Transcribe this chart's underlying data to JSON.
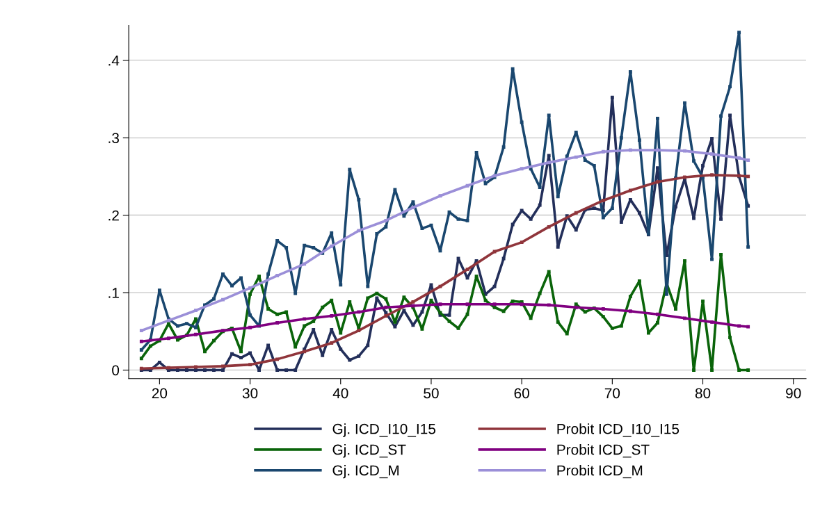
{
  "chart_data": {
    "type": "line",
    "marker": "square",
    "line_style": "solid",
    "grid": "y",
    "legend": "bottom",
    "xlim": [
      16.6,
      91.4
    ],
    "xticks": [
      20,
      30,
      40,
      50,
      60,
      70,
      80,
      90
    ],
    "ylim": [
      -0.011,
      0.445
    ],
    "yticks": [
      0,
      {
        "value": 0.1,
        "label": ".1"
      },
      {
        "value": 0.2,
        "label": ".2"
      },
      {
        "value": 0.3,
        "label": ".3"
      },
      {
        "value": 0.4,
        "label": ".4"
      }
    ],
    "x": [
      18,
      19,
      20,
      21,
      22,
      23,
      24,
      25,
      26,
      27,
      28,
      29,
      30,
      31,
      32,
      33,
      34,
      35,
      36,
      37,
      38,
      39,
      40,
      41,
      42,
      43,
      44,
      45,
      46,
      47,
      48,
      49,
      50,
      51,
      52,
      53,
      54,
      55,
      56,
      57,
      58,
      59,
      60,
      61,
      62,
      63,
      64,
      65,
      66,
      67,
      68,
      69,
      70,
      71,
      72,
      73,
      74,
      75,
      76,
      77,
      78,
      79,
      80,
      81,
      82,
      83,
      84,
      85
    ],
    "series": [
      {
        "name": "Gj. ICD_I10_I15",
        "color": "#232f5a",
        "values": [
          0,
          0,
          0.01,
          0,
          0,
          0,
          0,
          0,
          0,
          0,
          0.021,
          0.016,
          0.022,
          0,
          0.032,
          0,
          0,
          0,
          0.027,
          0.052,
          0.019,
          0.052,
          0.027,
          0.013,
          0.018,
          0.032,
          0.093,
          0.074,
          0.056,
          0.077,
          0.058,
          0.075,
          0.11,
          0.071,
          0.071,
          0.144,
          0.119,
          0.141,
          0.098,
          0.108,
          0.144,
          0.188,
          0.206,
          0.195,
          0.213,
          0.277,
          0.159,
          0.199,
          0.181,
          0.207,
          0.209,
          0.206,
          0.352,
          0.191,
          0.22,
          0.203,
          0.175,
          0.261,
          0.148,
          0.211,
          0.247,
          0.196,
          0.264,
          0.299,
          0.195,
          0.329,
          0.25,
          0.212
        ]
      },
      {
        "name": "Gj. ICD_ST",
        "color": "#0a640a",
        "values": [
          0.015,
          0.031,
          0.038,
          0.06,
          0.039,
          0.045,
          0.066,
          0.024,
          0.038,
          0.05,
          0.054,
          0.024,
          0.098,
          0.121,
          0.079,
          0.072,
          0.075,
          0.03,
          0.057,
          0.063,
          0.081,
          0.09,
          0.048,
          0.088,
          0.054,
          0.093,
          0.099,
          0.092,
          0.062,
          0.094,
          0.081,
          0.053,
          0.09,
          0.074,
          0.063,
          0.054,
          0.072,
          0.121,
          0.09,
          0.081,
          0.076,
          0.089,
          0.088,
          0.067,
          0.099,
          0.127,
          0.062,
          0.047,
          0.085,
          0.075,
          0.08,
          0.069,
          0.054,
          0.057,
          0.095,
          0.115,
          0.048,
          0.061,
          0.112,
          0.079,
          0.141,
          0,
          0.089,
          0,
          0.149,
          0.042,
          0,
          0
        ]
      },
      {
        "name": "Gj. ICD_M",
        "color": "#1a476f",
        "values": [
          0.026,
          0.039,
          0.103,
          0.066,
          0.057,
          0.06,
          0.055,
          0.084,
          0.092,
          0.124,
          0.109,
          0.119,
          0.071,
          0.057,
          0.124,
          0.167,
          0.158,
          0.099,
          0.161,
          0.158,
          0.151,
          0.177,
          0.11,
          0.259,
          0.22,
          0.108,
          0.176,
          0.185,
          0.233,
          0.199,
          0.217,
          0.183,
          0.187,
          0.154,
          0.204,
          0.195,
          0.193,
          0.281,
          0.241,
          0.249,
          0.288,
          0.389,
          0.32,
          0.26,
          0.236,
          0.329,
          0.224,
          0.276,
          0.307,
          0.271,
          0.264,
          0.197,
          0.209,
          0.3,
          0.385,
          0.297,
          0.176,
          0.325,
          0.098,
          0.248,
          0.345,
          0.27,
          0.249,
          0.143,
          0.328,
          0.366,
          0.436,
          0.159
        ]
      },
      {
        "name": "Probit ICD_I10_I15",
        "color": "#90353b",
        "x": [
          18,
          21,
          24,
          27,
          30,
          33,
          36,
          39,
          42,
          45,
          48,
          51,
          54,
          57,
          60,
          63,
          66,
          69,
          72,
          75,
          78,
          81,
          84,
          85
        ],
        "values": [
          0.002,
          0.003,
          0.004,
          0.005,
          0.007,
          0.014,
          0.024,
          0.035,
          0.051,
          0.07,
          0.088,
          0.108,
          0.13,
          0.153,
          0.165,
          0.185,
          0.203,
          0.219,
          0.232,
          0.243,
          0.249,
          0.252,
          0.251,
          0.25
        ]
      },
      {
        "name": "Probit ICD_ST",
        "color": "#800080",
        "x": [
          18,
          21,
          24,
          27,
          30,
          33,
          36,
          39,
          42,
          45,
          48,
          51,
          54,
          57,
          60,
          63,
          66,
          69,
          72,
          75,
          78,
          81,
          84,
          85
        ],
        "values": [
          0.037,
          0.041,
          0.046,
          0.051,
          0.055,
          0.061,
          0.066,
          0.07,
          0.075,
          0.081,
          0.083,
          0.085,
          0.085,
          0.085,
          0.085,
          0.084,
          0.081,
          0.079,
          0.076,
          0.072,
          0.067,
          0.062,
          0.057,
          0.056
        ]
      },
      {
        "name": "Probit ICD_M",
        "color": "#9b8fd8",
        "x": [
          18,
          21,
          24,
          27,
          30,
          33,
          36,
          39,
          42,
          45,
          48,
          51,
          54,
          57,
          60,
          63,
          66,
          69,
          72,
          75,
          78,
          81,
          84,
          85
        ],
        "values": [
          0.051,
          0.064,
          0.077,
          0.091,
          0.106,
          0.122,
          0.137,
          0.16,
          0.18,
          0.193,
          0.21,
          0.225,
          0.238,
          0.251,
          0.26,
          0.268,
          0.275,
          0.282,
          0.284,
          0.284,
          0.283,
          0.279,
          0.274,
          0.271
        ]
      }
    ]
  }
}
